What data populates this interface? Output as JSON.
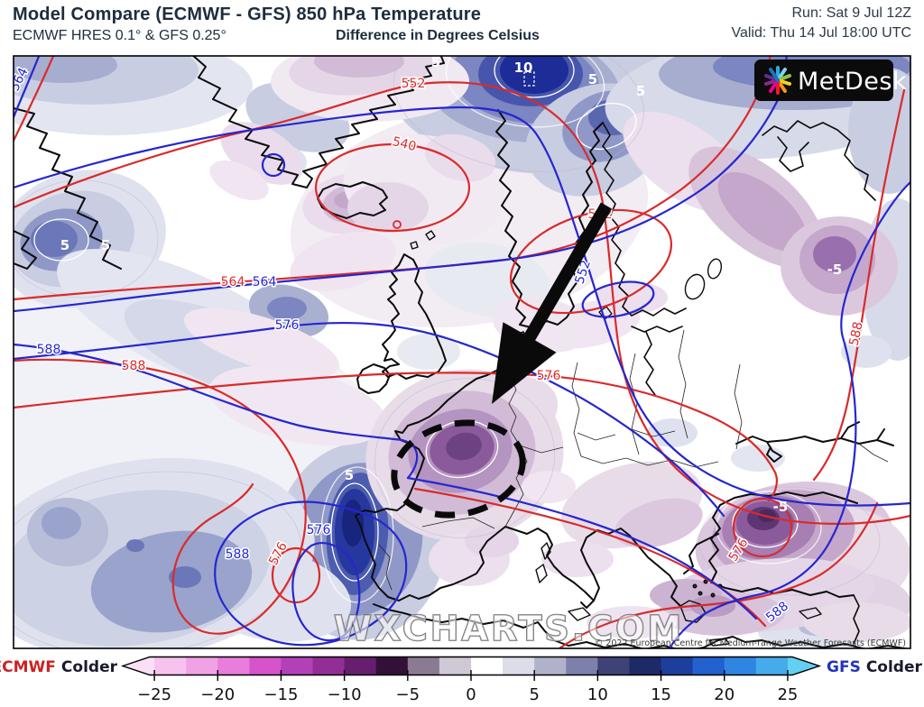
{
  "header": {
    "title": "Model Compare (ECMWF - GFS) 850 hPa Temperature",
    "subtitle_left": "ECMWF HRES 0.1° & GFS 0.25°",
    "subtitle_center": "Difference in Degrees Celsius",
    "run_line": "Run: Sat 9 Jul 12Z",
    "valid_line": "Valid: Thu 14 Jul 18:00 UTC"
  },
  "branding": {
    "logo_text": "MetDesk",
    "watermark": "WXCHARTS.COM",
    "copyright": "© 2022 European Centre for Medium-range Weather Forecasts (ECMWF)"
  },
  "map": {
    "isohypse_values": {
      "v540": "540",
      "v552": "552",
      "v564": "564",
      "v576": "576",
      "v588": "588"
    },
    "difference_labels": {
      "p5": "5",
      "p10": "10",
      "m5": "-5"
    },
    "contour_colors": {
      "gfs_height": "#d92b2b",
      "ecmwf_height": "#2626cf"
    }
  },
  "colorbar": {
    "left_model": "ECMWF",
    "left_text": "Colder",
    "right_model": "GFS",
    "right_text": "Colder",
    "left_model_color": "#cc2222",
    "right_model_color": "#2233bb",
    "range": [
      -27.5,
      27.5
    ],
    "ticks": [
      {
        "value": -25,
        "label": "−25"
      },
      {
        "value": -20,
        "label": "−20"
      },
      {
        "value": -15,
        "label": "−15"
      },
      {
        "value": -10,
        "label": "−10"
      },
      {
        "value": -5,
        "label": "−5"
      },
      {
        "value": 0,
        "label": "0"
      },
      {
        "value": 5,
        "label": "5"
      },
      {
        "value": 10,
        "label": "10"
      },
      {
        "value": 15,
        "label": "15"
      },
      {
        "value": 20,
        "label": "20"
      },
      {
        "value": 25,
        "label": "25"
      }
    ],
    "segment_colors": [
      "#fbe0f5",
      "#f7c3ee",
      "#f0a2e5",
      "#e87ddb",
      "#d653cb",
      "#b440b8",
      "#922f97",
      "#661f6e",
      "#331038",
      "#8a7b93",
      "#cfc9d6",
      "#ffffff",
      "#dcdde8",
      "#b0b2cc",
      "#7d80ab",
      "#3f4277",
      "#1d2a66",
      "#1c3f9e",
      "#2361cf",
      "#2f86e2",
      "#45abeb",
      "#63d0f2"
    ]
  }
}
